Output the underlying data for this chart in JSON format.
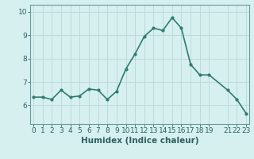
{
  "title": "",
  "xlabel": "Humidex (Indice chaleur)",
  "ylabel": "",
  "x": [
    0,
    1,
    2,
    3,
    4,
    5,
    6,
    7,
    8,
    9,
    10,
    11,
    12,
    13,
    14,
    15,
    16,
    17,
    18,
    19,
    21,
    22,
    23
  ],
  "y": [
    6.35,
    6.35,
    6.25,
    6.65,
    6.35,
    6.4,
    6.7,
    6.65,
    6.25,
    6.6,
    7.55,
    8.2,
    8.95,
    9.3,
    9.2,
    9.75,
    9.3,
    7.75,
    7.3,
    7.3,
    6.65,
    6.25,
    5.65
  ],
  "line_color": "#2e7d6e",
  "marker": "o",
  "marker_size": 2.0,
  "bg_color": "#d6f0f0",
  "grid_color": "#c0d8d8",
  "ylim": [
    5.2,
    10.3
  ],
  "xlim": [
    -0.3,
    23.3
  ],
  "xticks": [
    0,
    1,
    2,
    3,
    4,
    5,
    6,
    7,
    8,
    9,
    10,
    11,
    12,
    13,
    14,
    15,
    16,
    17,
    18,
    19,
    21,
    22,
    23
  ],
  "xtick_labels": [
    "0",
    "1",
    "2",
    "3",
    "4",
    "5",
    "6",
    "7",
    "8",
    "9",
    "10",
    "11",
    "12",
    "13",
    "14",
    "15",
    "16",
    "17",
    "18",
    "19",
    "21",
    "22",
    "23"
  ],
  "yticks": [
    6,
    7,
    8,
    9,
    10
  ],
  "ytick_labels": [
    "6",
    "7",
    "8",
    "9",
    "10"
  ],
  "tick_color": "#2e6060",
  "spine_color": "#6a9999",
  "xlabel_fontsize": 7.5,
  "tick_fontsize": 6.5,
  "line_width": 1.2
}
